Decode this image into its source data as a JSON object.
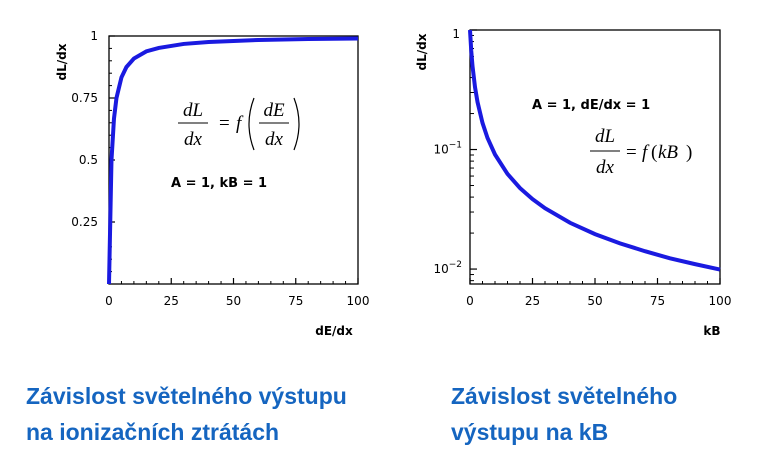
{
  "chart_data": [
    {
      "type": "line",
      "xlabel": "dE/dx",
      "ylabel": "dL/dx",
      "xlim": [
        0,
        100
      ],
      "ylim": [
        0,
        1
      ],
      "x_ticks": [
        "0",
        "25",
        "50",
        "75",
        "100"
      ],
      "y_ticks": [
        "0.25",
        "0.5",
        "0.75",
        "1"
      ],
      "annotation": "A = 1, kB = 1",
      "formula": {
        "lhs_num": "dL",
        "lhs_den": "dx",
        "f": "f",
        "arg_num": "dE",
        "arg_den": "dx"
      },
      "series": [
        {
          "color": "#1a1ae0",
          "x": [
            0,
            1,
            2,
            3,
            5,
            7,
            10,
            15,
            20,
            30,
            40,
            50,
            60,
            70,
            80,
            90,
            100
          ],
          "y": [
            0,
            0.5,
            0.667,
            0.75,
            0.833,
            0.875,
            0.909,
            0.938,
            0.952,
            0.968,
            0.976,
            0.98,
            0.984,
            0.986,
            0.988,
            0.989,
            0.99
          ]
        }
      ],
      "caption": [
        "Závislost světelného výstupu",
        "na ionizačních ztrátách"
      ]
    },
    {
      "type": "line",
      "xlabel": "kB",
      "ylabel": "dL/dx",
      "xlim": [
        0,
        100
      ],
      "ylim": [
        0.0075,
        1
      ],
      "y_scale": "log",
      "x_ticks": [
        "0",
        "25",
        "50",
        "75",
        "100"
      ],
      "y_ticks": [
        {
          "base": "1",
          "exp": ""
        },
        {
          "base": "10",
          "exp": "−1"
        },
        {
          "base": "10",
          "exp": "−2"
        }
      ],
      "annotation": "A = 1, dE/dx = 1",
      "formula": {
        "lhs_num": "dL",
        "lhs_den": "dx",
        "f": "f",
        "arg": "kB"
      },
      "series": [
        {
          "color": "#1a1ae0",
          "x": [
            0,
            0.5,
            1,
            2,
            3,
            5,
            7,
            10,
            15,
            20,
            25,
            30,
            40,
            50,
            60,
            70,
            80,
            90,
            100
          ],
          "y": [
            1,
            0.667,
            0.5,
            0.333,
            0.25,
            0.167,
            0.125,
            0.0909,
            0.0625,
            0.0476,
            0.0385,
            0.0323,
            0.0244,
            0.0196,
            0.0164,
            0.0141,
            0.0123,
            0.011,
            0.0099
          ]
        }
      ],
      "caption": [
        "Závislost světelného",
        "výstupu na kB"
      ]
    }
  ]
}
